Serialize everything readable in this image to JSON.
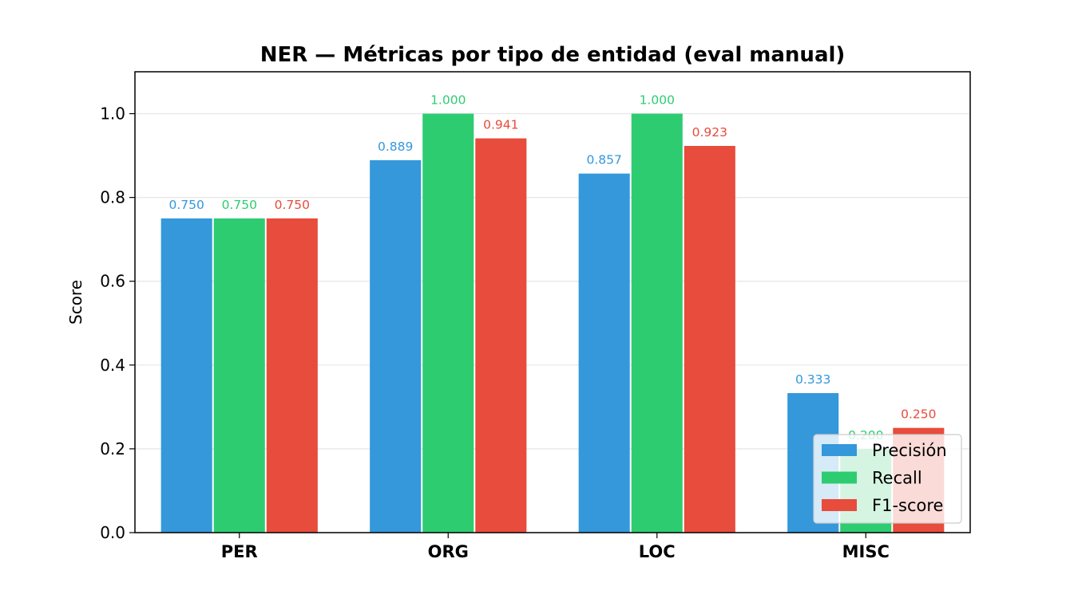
{
  "chart_data": {
    "type": "bar",
    "title": "NER — Métricas por tipo de entidad (eval manual)",
    "xlabel": "",
    "ylabel": "Score",
    "ylim": [
      0,
      1.1
    ],
    "yticks": [
      "0.0",
      "0.2",
      "0.4",
      "0.6",
      "0.8",
      "1.0"
    ],
    "categories": [
      "PER",
      "ORG",
      "LOC",
      "MISC"
    ],
    "series": [
      {
        "name": "Precisión",
        "color": "#3498db",
        "values": [
          0.75,
          0.889,
          0.857,
          0.333
        ],
        "labels": [
          "0.750",
          "0.889",
          "0.857",
          "0.333"
        ]
      },
      {
        "name": "Recall",
        "color": "#2ecc71",
        "values": [
          0.75,
          1.0,
          1.0,
          0.2
        ],
        "labels": [
          "0.750",
          "1.000",
          "1.000",
          "0.200"
        ]
      },
      {
        "name": "F1-score",
        "color": "#e74c3c",
        "values": [
          0.75,
          0.941,
          0.923,
          0.25
        ],
        "labels": [
          "0.750",
          "0.941",
          "0.923",
          "0.250"
        ]
      }
    ],
    "grid": "y",
    "legend": "lower-right"
  }
}
